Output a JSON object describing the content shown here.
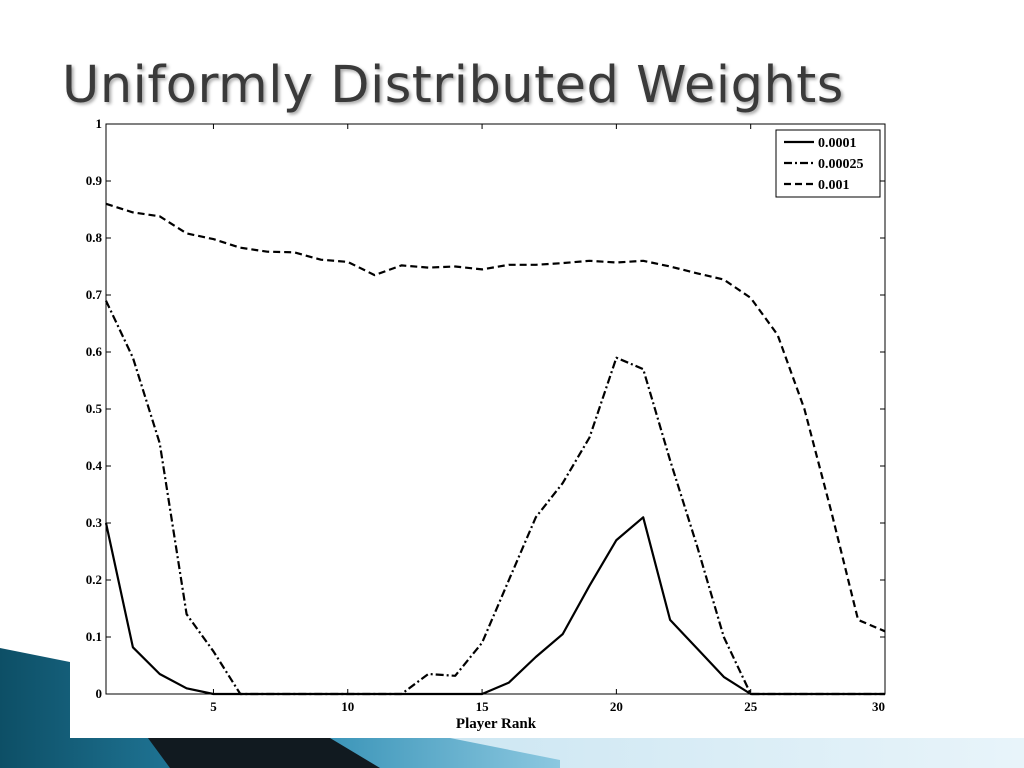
{
  "slide": {
    "title": "Uniformly Distributed Weights"
  },
  "chart_data": {
    "type": "line",
    "title": "",
    "xlabel": "Player Rank",
    "ylabel": "",
    "xlim": [
      1,
      30
    ],
    "ylim": [
      0,
      1
    ],
    "x_ticks": [
      5,
      10,
      15,
      20,
      25,
      30
    ],
    "y_ticks": [
      0,
      0.1,
      0.2,
      0.3,
      0.4,
      0.5,
      0.6,
      0.7,
      0.8,
      0.9,
      1
    ],
    "y_tick_labels": [
      "0",
      "0.1",
      "0.2",
      "0.3",
      "0.4",
      "0.5",
      "0.6",
      "0.7",
      "0.8",
      "0.9",
      "1"
    ],
    "grid": false,
    "legend_position": "top-right",
    "x": [
      1,
      2,
      3,
      4,
      5,
      6,
      7,
      8,
      9,
      10,
      11,
      12,
      13,
      14,
      15,
      16,
      17,
      18,
      19,
      20,
      21,
      22,
      23,
      24,
      25,
      26,
      27,
      28,
      29,
      30
    ],
    "series": [
      {
        "name": "0.0001",
        "style": "solid",
        "color": "#000000",
        "values": [
          0.3,
          0.082,
          0.035,
          0.01,
          0.0,
          0.0,
          0.0,
          0.0,
          0.0,
          0.0,
          0.0,
          0.0,
          0.0,
          0.0,
          0.0,
          0.02,
          0.065,
          0.105,
          0.19,
          0.27,
          0.31,
          0.13,
          0.08,
          0.03,
          0.0,
          0.0,
          0.0,
          0.0,
          0.0,
          0.0
        ]
      },
      {
        "name": "0.00025",
        "style": "dashdot",
        "color": "#000000",
        "values": [
          0.69,
          0.59,
          0.44,
          0.14,
          0.075,
          0.0,
          0.0,
          0.0,
          0.0,
          0.0,
          0.0,
          0.0,
          0.035,
          0.032,
          0.09,
          0.2,
          0.31,
          0.37,
          0.45,
          0.59,
          0.57,
          0.41,
          0.26,
          0.1,
          0.0,
          0.0,
          0.0,
          0.0,
          0.0,
          0.0
        ]
      },
      {
        "name": "0.001",
        "style": "dashed",
        "color": "#000000",
        "values": [
          0.86,
          0.845,
          0.838,
          0.808,
          0.798,
          0.783,
          0.776,
          0.775,
          0.762,
          0.758,
          0.735,
          0.752,
          0.748,
          0.75,
          0.745,
          0.753,
          0.753,
          0.756,
          0.76,
          0.757,
          0.76,
          0.75,
          0.738,
          0.727,
          0.695,
          0.63,
          0.5,
          0.32,
          0.13,
          0.11
        ]
      }
    ]
  }
}
